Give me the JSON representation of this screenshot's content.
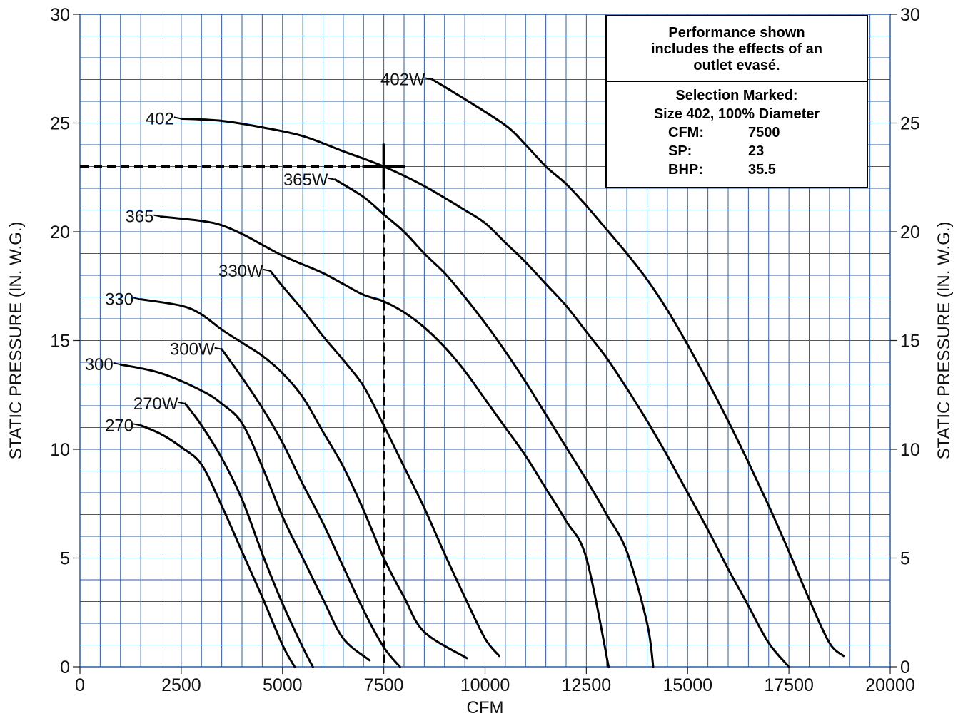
{
  "chart_data": {
    "type": "line",
    "title": "",
    "xlabel": "CFM",
    "ylabel": "STATIC PRESSURE (IN. W.G.)",
    "ylabel_right": "STATIC PRESSURE (IN. W.G.)",
    "xlim": [
      0,
      20000
    ],
    "ylim": [
      0,
      30
    ],
    "x_ticks": [
      "0",
      "2500",
      "5000",
      "7500",
      "10000",
      "12500",
      "15000",
      "17500",
      "20000"
    ],
    "y_ticks": [
      "0",
      "5",
      "10",
      "15",
      "20",
      "25",
      "30"
    ],
    "grid": true,
    "grid_color": "#2b5ea8",
    "series": [
      {
        "name": "270",
        "points": [
          [
            1500,
            11.1
          ],
          [
            2000,
            10.7
          ],
          [
            2500,
            10.1
          ],
          [
            3000,
            9.3
          ],
          [
            3500,
            7.4
          ],
          [
            4000,
            5.3
          ],
          [
            4500,
            3.2
          ],
          [
            5000,
            1.0
          ],
          [
            5300,
            0
          ]
        ]
      },
      {
        "name": "270W",
        "points": [
          [
            2600,
            12.1
          ],
          [
            3000,
            11.1
          ],
          [
            3500,
            9.6
          ],
          [
            4000,
            7.7
          ],
          [
            4500,
            5.2
          ],
          [
            5000,
            2.9
          ],
          [
            5500,
            0.9
          ],
          [
            5750,
            0
          ]
        ]
      },
      {
        "name": "300",
        "points": [
          [
            1000,
            13.9
          ],
          [
            2000,
            13.5
          ],
          [
            3000,
            12.7
          ],
          [
            3500,
            12.1
          ],
          [
            4000,
            11.2
          ],
          [
            4500,
            9.2
          ],
          [
            5000,
            6.9
          ],
          [
            5500,
            5.0
          ],
          [
            6000,
            3.1
          ],
          [
            6500,
            1.3
          ],
          [
            7150,
            0.3
          ]
        ]
      },
      {
        "name": "300W",
        "points": [
          [
            3500,
            14.6
          ],
          [
            4000,
            13.3
          ],
          [
            4500,
            11.9
          ],
          [
            5000,
            10.3
          ],
          [
            5500,
            8.4
          ],
          [
            6000,
            6.6
          ],
          [
            6500,
            4.6
          ],
          [
            7000,
            2.6
          ],
          [
            7500,
            0.9
          ],
          [
            7900,
            0
          ]
        ]
      },
      {
        "name": "330",
        "points": [
          [
            1500,
            16.9
          ],
          [
            2500,
            16.6
          ],
          [
            3000,
            16.2
          ],
          [
            3500,
            15.5
          ],
          [
            4000,
            14.9
          ],
          [
            4500,
            14.3
          ],
          [
            5000,
            13.5
          ],
          [
            5500,
            12.4
          ],
          [
            6000,
            10.8
          ],
          [
            6500,
            9.2
          ],
          [
            7000,
            7.2
          ],
          [
            7500,
            5.0
          ],
          [
            8000,
            3.2
          ],
          [
            8500,
            1.6
          ],
          [
            9550,
            0.4
          ]
        ]
      },
      {
        "name": "330W",
        "points": [
          [
            4700,
            18.2
          ],
          [
            5000,
            17.5
          ],
          [
            5500,
            16.4
          ],
          [
            6000,
            15.2
          ],
          [
            6500,
            14.1
          ],
          [
            7000,
            12.9
          ],
          [
            7500,
            11.1
          ],
          [
            8000,
            9.2
          ],
          [
            8500,
            7.3
          ],
          [
            9000,
            5.2
          ],
          [
            9500,
            3.2
          ],
          [
            10000,
            1.3
          ],
          [
            10350,
            0.5
          ]
        ]
      },
      {
        "name": "365",
        "points": [
          [
            2000,
            20.7
          ],
          [
            3000,
            20.5
          ],
          [
            3500,
            20.3
          ],
          [
            4000,
            19.9
          ],
          [
            4500,
            19.4
          ],
          [
            5000,
            18.9
          ],
          [
            5500,
            18.5
          ],
          [
            6000,
            18.1
          ],
          [
            6500,
            17.6
          ],
          [
            7000,
            17.1
          ],
          [
            7500,
            16.8
          ],
          [
            8000,
            16.3
          ],
          [
            8500,
            15.6
          ],
          [
            9000,
            14.7
          ],
          [
            9500,
            13.6
          ],
          [
            10000,
            12.3
          ],
          [
            10500,
            11.0
          ],
          [
            11000,
            9.7
          ],
          [
            11500,
            8.2
          ],
          [
            12000,
            6.7
          ],
          [
            12500,
            5.0
          ],
          [
            13050,
            0
          ]
        ]
      },
      {
        "name": "365W",
        "points": [
          [
            6300,
            22.4
          ],
          [
            7000,
            21.6
          ],
          [
            7500,
            20.8
          ],
          [
            8000,
            20.0
          ],
          [
            8500,
            19.0
          ],
          [
            9000,
            18.1
          ],
          [
            9500,
            17.0
          ],
          [
            10000,
            15.8
          ],
          [
            10500,
            14.5
          ],
          [
            11000,
            13.1
          ],
          [
            11500,
            11.6
          ],
          [
            12000,
            10.1
          ],
          [
            12500,
            8.6
          ],
          [
            13000,
            7.0
          ],
          [
            13500,
            5.3
          ],
          [
            14000,
            2.0
          ],
          [
            14150,
            0
          ]
        ]
      },
      {
        "name": "402",
        "points": [
          [
            2500,
            25.2
          ],
          [
            3500,
            25.1
          ],
          [
            4500,
            24.8
          ],
          [
            5500,
            24.4
          ],
          [
            6500,
            23.7
          ],
          [
            7500,
            23.0
          ],
          [
            8500,
            22.1
          ],
          [
            9500,
            21.0
          ],
          [
            10000,
            20.4
          ],
          [
            10500,
            19.5
          ],
          [
            11000,
            18.6
          ],
          [
            11500,
            17.6
          ],
          [
            12000,
            16.6
          ],
          [
            12500,
            15.4
          ],
          [
            13000,
            14.2
          ],
          [
            13500,
            12.8
          ],
          [
            14000,
            11.3
          ],
          [
            14500,
            9.7
          ],
          [
            15000,
            8.0
          ],
          [
            15500,
            6.3
          ],
          [
            16000,
            4.5
          ],
          [
            16500,
            2.8
          ],
          [
            17000,
            1.1
          ],
          [
            17500,
            0
          ]
        ]
      },
      {
        "name": "402W",
        "points": [
          [
            8700,
            27.0
          ],
          [
            9500,
            26.1
          ],
          [
            10500,
            24.9
          ],
          [
            11000,
            24.0
          ],
          [
            11500,
            23.0
          ],
          [
            12000,
            22.2
          ],
          [
            12500,
            21.2
          ],
          [
            13000,
            20.1
          ],
          [
            13500,
            19.0
          ],
          [
            14000,
            17.8
          ],
          [
            14500,
            16.4
          ],
          [
            15000,
            14.8
          ],
          [
            15500,
            13.1
          ],
          [
            16000,
            11.3
          ],
          [
            16500,
            9.4
          ],
          [
            17000,
            7.4
          ],
          [
            17500,
            5.3
          ],
          [
            18000,
            3.1
          ],
          [
            18500,
            1.1
          ],
          [
            18850,
            0.5
          ]
        ]
      }
    ],
    "curve_labels": [
      "270",
      "270W",
      "300",
      "300W",
      "330",
      "330W",
      "365",
      "365W",
      "402",
      "402W"
    ],
    "selection_point": {
      "cfm": 7500,
      "sp": 23
    }
  },
  "note": {
    "performance_lines": [
      "Performance shown",
      "includes the effects of an",
      "outlet evasé."
    ],
    "selection_title": "Selection Marked:",
    "selection_subtitle": "Size 402, 100% Diameter",
    "rows": [
      {
        "key": "CFM:",
        "value": "7500"
      },
      {
        "key": "SP:",
        "value": "23"
      },
      {
        "key": "BHP:",
        "value": "35.5"
      }
    ]
  }
}
